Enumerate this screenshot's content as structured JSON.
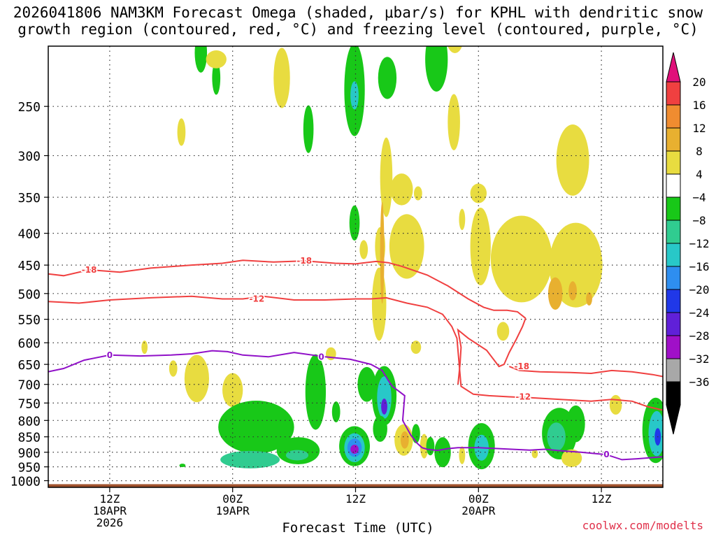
{
  "title_line1": "2026041806 NAM3KM Forecast Omega (shaded, μbar/s) for KPHL with dendritic snow",
  "title_line2": "growth region (contoured, red, °C) and freezing level (contoured, purple, °C)",
  "credit": "coolwx.com/modelts",
  "chart_data": {
    "type": "heatmap",
    "title": "2026041806 NAM3KM Forecast Omega (shaded, μbar/s) for KPHL with dendritic snow growth region (contoured, red, °C) and freezing level (contoured, purple, °C)",
    "xlabel": "Forecast Time (UTC)",
    "ylabel": "",
    "x_unit": "forecast hour",
    "xlim": [
      0,
      60
    ],
    "y_scale": "log-pressure (hPa)",
    "ylim": [
      1000,
      200
    ],
    "grid": true,
    "x_ticks": [
      {
        "x": 6,
        "lines": [
          "12Z",
          "18APR",
          "2026"
        ]
      },
      {
        "x": 18,
        "lines": [
          "00Z",
          "19APR"
        ]
      },
      {
        "x": 30,
        "lines": [
          "12Z"
        ]
      },
      {
        "x": 42,
        "lines": [
          "00Z",
          "20APR"
        ]
      },
      {
        "x": 54,
        "lines": [
          "12Z"
        ]
      }
    ],
    "y_ticks": [
      250,
      300,
      350,
      400,
      450,
      500,
      550,
      600,
      650,
      700,
      750,
      800,
      850,
      900,
      950,
      1000
    ],
    "colorbar": {
      "labels": [
        "20",
        "16",
        "12",
        "8",
        "4",
        "−4",
        "−8",
        "−12",
        "−16",
        "−20",
        "−24",
        "−28",
        "−32",
        "−36"
      ],
      "colors": [
        "#e0306a",
        "#f04040",
        "#f08c30",
        "#e8b030",
        "#e8dc40",
        "#ffffff",
        "#18c818",
        "#30cc90",
        "#28c8c8",
        "#2e8ef0",
        "#2038e8",
        "#6020d8",
        "#a010c8",
        "#a8a8a8",
        "#000000"
      ],
      "arrow_top": "#e0107a",
      "arrow_bottom": "#000000"
    },
    "omega_regions": [
      {
        "x": 14.9,
        "p": 205,
        "w": 0.6,
        "h": 30,
        "value": -6
      },
      {
        "x": 16.4,
        "p": 225,
        "w": 0.4,
        "h": 28,
        "value": -6
      },
      {
        "x": 16.4,
        "p": 210,
        "w": 1.0,
        "h": 14,
        "value": 6
      },
      {
        "x": 13.0,
        "p": 275,
        "w": 0.4,
        "h": 28,
        "value": 6
      },
      {
        "x": 22.8,
        "p": 225,
        "w": 0.8,
        "h": 50,
        "value": 6
      },
      {
        "x": 25.4,
        "p": 272,
        "w": 0.5,
        "h": 48,
        "value": -6
      },
      {
        "x": 29.9,
        "p": 235,
        "w": 1.0,
        "h": 80,
        "value": -6
      },
      {
        "x": 29.9,
        "p": 240,
        "w": 0.4,
        "h": 25,
        "value": -12
      },
      {
        "x": 29.9,
        "p": 385,
        "w": 0.5,
        "h": 50,
        "value": -6
      },
      {
        "x": 30.8,
        "p": 425,
        "w": 0.4,
        "h": 30,
        "value": 6
      },
      {
        "x": 33.1,
        "p": 225,
        "w": 0.9,
        "h": 35,
        "value": -6
      },
      {
        "x": 33.0,
        "p": 325,
        "w": 0.6,
        "h": 95,
        "value": 6
      },
      {
        "x": 32.4,
        "p": 420,
        "w": 0.5,
        "h": 60,
        "value": 6
      },
      {
        "x": 32.3,
        "p": 520,
        "w": 0.7,
        "h": 140,
        "value": 6
      },
      {
        "x": 32.6,
        "p": 430,
        "w": 0.2,
        "h": 160,
        "value": 10
      },
      {
        "x": 34.5,
        "p": 340,
        "w": 1.1,
        "h": 40,
        "value": 6
      },
      {
        "x": 35.0,
        "p": 420,
        "w": 1.7,
        "h": 100,
        "value": 6
      },
      {
        "x": 36.1,
        "p": 345,
        "w": 0.4,
        "h": 18,
        "value": 6
      },
      {
        "x": 37.9,
        "p": 210,
        "w": 1.1,
        "h": 50,
        "value": -6
      },
      {
        "x": 39.6,
        "p": 265,
        "w": 0.6,
        "h": 55,
        "value": 6
      },
      {
        "x": 39.7,
        "p": 195,
        "w": 0.8,
        "h": 20,
        "value": 6
      },
      {
        "x": 42.0,
        "p": 345,
        "w": 0.8,
        "h": 25,
        "value": 6
      },
      {
        "x": 42.2,
        "p": 420,
        "w": 1.0,
        "h": 120,
        "value": 6
      },
      {
        "x": 40.4,
        "p": 380,
        "w": 0.3,
        "h": 30,
        "value": 6
      },
      {
        "x": 43.8,
        "p": 460,
        "w": 0.3,
        "h": 20,
        "value": -6
      },
      {
        "x": 46.2,
        "p": 440,
        "w": 3.0,
        "h": 140,
        "value": 6
      },
      {
        "x": 51.2,
        "p": 305,
        "w": 1.6,
        "h": 80,
        "value": 6
      },
      {
        "x": 51.5,
        "p": 450,
        "w": 2.6,
        "h": 140,
        "value": 6
      },
      {
        "x": 49.5,
        "p": 500,
        "w": 0.7,
        "h": 60,
        "value": 10
      },
      {
        "x": 51.2,
        "p": 495,
        "w": 0.4,
        "h": 35,
        "value": 10
      },
      {
        "x": 52.8,
        "p": 510,
        "w": 0.3,
        "h": 25,
        "value": 10
      },
      {
        "x": 44.4,
        "p": 575,
        "w": 0.6,
        "h": 40,
        "value": 6
      },
      {
        "x": 35.9,
        "p": 610,
        "w": 0.5,
        "h": 30,
        "value": 6
      },
      {
        "x": 27.6,
        "p": 625,
        "w": 0.5,
        "h": 30,
        "value": 6
      },
      {
        "x": 18.0,
        "p": 715,
        "w": 1.0,
        "h": 90,
        "value": 6
      },
      {
        "x": 14.5,
        "p": 685,
        "w": 1.2,
        "h": 120,
        "value": 6
      },
      {
        "x": 12.2,
        "p": 660,
        "w": 0.4,
        "h": 40,
        "value": 6
      },
      {
        "x": 9.4,
        "p": 610,
        "w": 0.3,
        "h": 30,
        "value": 6
      },
      {
        "x": 20.3,
        "p": 820,
        "w": 3.7,
        "h": 160,
        "value": -6
      },
      {
        "x": 19.7,
        "p": 925,
        "w": 2.9,
        "h": 60,
        "value": -10
      },
      {
        "x": 24.4,
        "p": 895,
        "w": 2.1,
        "h": 90,
        "value": -6
      },
      {
        "x": 24.3,
        "p": 910,
        "w": 1.1,
        "h": 35,
        "value": -10
      },
      {
        "x": 26.1,
        "p": 720,
        "w": 1.0,
        "h": 200,
        "value": -6
      },
      {
        "x": 28.1,
        "p": 775,
        "w": 0.4,
        "h": 60,
        "value": -6
      },
      {
        "x": 29.9,
        "p": 880,
        "w": 1.5,
        "h": 130,
        "value": -6
      },
      {
        "x": 29.9,
        "p": 885,
        "w": 1.0,
        "h": 95,
        "value": -12
      },
      {
        "x": 29.9,
        "p": 885,
        "w": 0.7,
        "h": 60,
        "value": -18
      },
      {
        "x": 29.9,
        "p": 890,
        "w": 0.4,
        "h": 30,
        "value": -30
      },
      {
        "x": 31.1,
        "p": 700,
        "w": 0.9,
        "h": 90,
        "value": -6
      },
      {
        "x": 32.8,
        "p": 730,
        "w": 1.2,
        "h": 160,
        "value": -6
      },
      {
        "x": 32.8,
        "p": 735,
        "w": 0.7,
        "h": 115,
        "value": -14
      },
      {
        "x": 32.8,
        "p": 760,
        "w": 0.3,
        "h": 45,
        "value": -24
      },
      {
        "x": 32.4,
        "p": 825,
        "w": 0.7,
        "h": 80,
        "value": -6
      },
      {
        "x": 34.7,
        "p": 860,
        "w": 0.9,
        "h": 100,
        "value": 6
      },
      {
        "x": 34.8,
        "p": 860,
        "w": 0.4,
        "h": 55,
        "value": 10
      },
      {
        "x": 35.9,
        "p": 840,
        "w": 0.4,
        "h": 60,
        "value": -6
      },
      {
        "x": 36.7,
        "p": 880,
        "w": 0.4,
        "h": 80,
        "value": 6
      },
      {
        "x": 37.3,
        "p": 880,
        "w": 0.4,
        "h": 60,
        "value": -6
      },
      {
        "x": 38.5,
        "p": 900,
        "w": 0.8,
        "h": 100,
        "value": -6
      },
      {
        "x": 40.4,
        "p": 910,
        "w": 0.3,
        "h": 60,
        "value": 6
      },
      {
        "x": 42.3,
        "p": 880,
        "w": 1.3,
        "h": 150,
        "value": -6
      },
      {
        "x": 42.3,
        "p": 885,
        "w": 0.7,
        "h": 85,
        "value": -12
      },
      {
        "x": 47.5,
        "p": 905,
        "w": 0.3,
        "h": 30,
        "value": 6
      },
      {
        "x": 49.9,
        "p": 840,
        "w": 1.7,
        "h": 160,
        "value": -6
      },
      {
        "x": 49.6,
        "p": 850,
        "w": 0.9,
        "h": 90,
        "value": -10
      },
      {
        "x": 51.5,
        "p": 810,
        "w": 0.9,
        "h": 110,
        "value": -6
      },
      {
        "x": 51.1,
        "p": 920,
        "w": 1.0,
        "h": 60,
        "value": 6
      },
      {
        "x": 55.4,
        "p": 755,
        "w": 0.6,
        "h": 55,
        "value": 6
      },
      {
        "x": 59.3,
        "p": 830,
        "w": 1.3,
        "h": 200,
        "value": -6
      },
      {
        "x": 59.4,
        "p": 840,
        "w": 0.8,
        "h": 140,
        "value": -12
      },
      {
        "x": 59.5,
        "p": 850,
        "w": 0.3,
        "h": 55,
        "value": -22
      },
      {
        "x": 13.1,
        "p": 945,
        "w": 0.3,
        "h": 12,
        "value": -6
      }
    ],
    "contours": [
      {
        "kind": "dgz",
        "label": "-18",
        "color": "#f04040",
        "x": [
          0,
          1.5,
          4,
          7,
          10,
          14,
          17,
          19,
          22,
          25,
          28,
          30,
          32,
          33.2,
          34.5,
          37,
          39,
          41,
          42.5,
          43.5,
          44.8,
          45.8,
          46.6
        ],
        "p": [
          465,
          468,
          458,
          462,
          455,
          450,
          447,
          442,
          445,
          443,
          447,
          448,
          444,
          446,
          452,
          467,
          486,
          510,
          526,
          532,
          532,
          535,
          548
        ]
      },
      {
        "kind": "dgz",
        "label": "-18",
        "color": "#f04040",
        "x": [
          46.6,
          46.3,
          45.7,
          45.0,
          44.5,
          44.0,
          42.8,
          41.0,
          40.0,
          40.3,
          40.2,
          40.0
        ],
        "p": [
          548,
          565,
          592,
          622,
          650,
          655,
          617,
          590,
          572,
          610,
          650,
          700
        ]
      },
      {
        "kind": "dgz",
        "label": "-18",
        "color": "#f04040",
        "x": [
          45.0,
          46.0,
          48.0,
          51.0,
          53.0,
          55.0,
          57.0,
          59.0,
          60.0
        ],
        "p": [
          655,
          665,
          668,
          670,
          672,
          665,
          668,
          675,
          680
        ]
      },
      {
        "kind": "dgz",
        "label": "-12",
        "color": "#f04040",
        "x": [
          0,
          3,
          6,
          10,
          14,
          17,
          19,
          21,
          24,
          27,
          30,
          31.5,
          33,
          35,
          37,
          38.5,
          39.4,
          39.9,
          40.3,
          41.5,
          43,
          45,
          47.5,
          50,
          53,
          55,
          57,
          58.5,
          60
        ],
        "p": [
          515,
          518,
          512,
          508,
          505,
          510,
          510,
          505,
          512,
          512,
          510,
          510,
          508,
          518,
          526,
          540,
          565,
          590,
          705,
          726,
          730,
          733,
          736,
          740,
          745,
          740,
          745,
          760,
          770
        ]
      },
      {
        "kind": "freezing",
        "label": "0",
        "color": "#9010c8",
        "x": [
          0,
          1.5,
          3.5,
          6,
          9,
          12,
          14,
          16,
          17.5,
          19,
          21.5,
          24,
          27,
          29.5,
          31.5,
          32.6,
          33.2,
          33.6,
          34.8,
          34.6,
          35.4,
          36,
          36.5,
          37,
          38,
          39,
          40,
          42,
          44,
          47,
          48.5,
          50,
          52,
          54.5,
          56,
          57.5,
          59,
          60
        ],
        "p": [
          668,
          660,
          640,
          628,
          630,
          628,
          625,
          618,
          620,
          628,
          632,
          622,
          632,
          638,
          650,
          665,
          690,
          705,
          730,
          800,
          845,
          870,
          885,
          890,
          894,
          888,
          885,
          885,
          888,
          893,
          890,
          895,
          900,
          908,
          925,
          922,
          918,
          915
        ]
      }
    ],
    "ground_p": 1013,
    "ground_color": "#a0522d"
  }
}
